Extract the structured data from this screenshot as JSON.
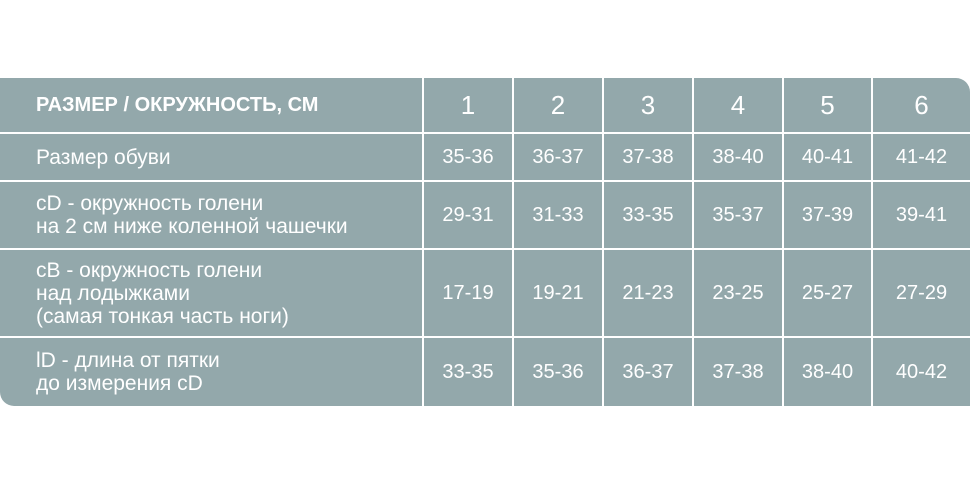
{
  "header": {
    "label": "РАЗМЕР / ОКРУЖНОСТЬ, СМ",
    "sizes": [
      "1",
      "2",
      "3",
      "4",
      "5",
      "6"
    ]
  },
  "rows": [
    {
      "label": "Размер обуви",
      "values": [
        "35-36",
        "36-37",
        "37-38",
        "38-40",
        "40-41",
        "41-42"
      ]
    },
    {
      "label": "cD - окружность  голени\nна 2 см ниже коленной чашечки",
      "values": [
        "29-31",
        "31-33",
        "33-35",
        "35-37",
        "37-39",
        "39-41"
      ]
    },
    {
      "label": "cB - окружность  голени\nнад лодыжками\n(самая тонкая часть ноги)",
      "values": [
        "17-19",
        "19-21",
        "21-23",
        "23-25",
        "25-27",
        "27-29"
      ]
    },
    {
      "label": "lD - длина от пятки\nдо измерения cD",
      "values": [
        "33-35",
        "35-36",
        "36-37",
        "37-38",
        "38-40",
        "40-42"
      ]
    }
  ],
  "colors": {
    "cell": "#93a8ab",
    "text": "#ffffff",
    "grid": "#ffffff"
  }
}
